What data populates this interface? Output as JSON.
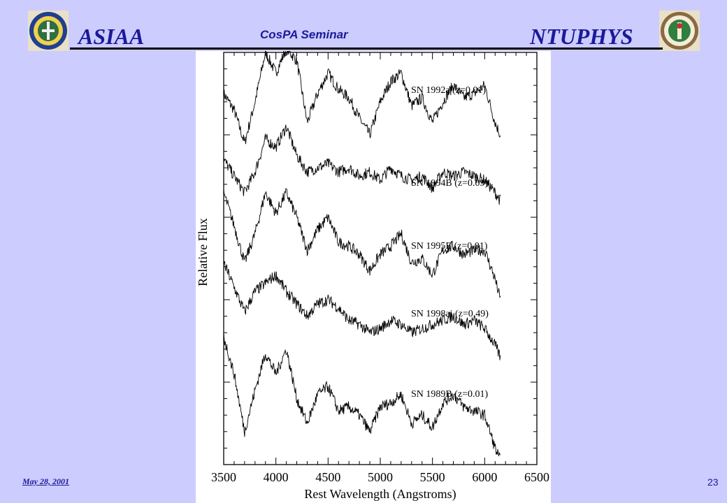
{
  "header": {
    "left_brand": "ASIAA",
    "center_title": "CosPA Seminar",
    "right_brand": "NTUPHYS",
    "left_logo": "academia-sinica-seal-icon",
    "right_logo": "ntu-seal-icon"
  },
  "footer": {
    "date": "May 28, 2001",
    "page_number": "23"
  },
  "colors": {
    "background": "#ccccff",
    "title_text": "#1a1a99",
    "plot_line": "#000000"
  },
  "chart_data": {
    "type": "line",
    "title": "",
    "xlabel": "Rest Wavelength (Angstroms)",
    "ylabel": "Relative Flux",
    "xlim": [
      3500,
      6500
    ],
    "ylim": [
      0,
      5
    ],
    "xticks": [
      3500,
      4000,
      4500,
      5000,
      5500,
      6000,
      6500
    ],
    "x_tick_labels": [
      "3500",
      "4000",
      "4500",
      "5000",
      "5500",
      "6000",
      "6500"
    ],
    "y_tick_labels_shown": false,
    "grid": false,
    "legend": "labels placed above each spectrum on the right",
    "series": [
      {
        "name": "SN 1992a (z=0.01)",
        "x": [
          3500,
          3600,
          3700,
          3800,
          3900,
          4000,
          4100,
          4200,
          4300,
          4400,
          4500,
          4600,
          4700,
          4800,
          4900,
          5000,
          5100,
          5200,
          5300,
          5400,
          5500,
          5600,
          5700,
          5800,
          5900,
          6000,
          6100,
          6150
        ],
        "y": [
          4.5,
          4.3,
          3.9,
          4.4,
          5.0,
          4.75,
          5.05,
          4.9,
          4.15,
          4.5,
          4.75,
          4.55,
          4.45,
          4.2,
          4.0,
          4.4,
          4.65,
          4.75,
          4.35,
          4.45,
          4.15,
          4.4,
          4.6,
          4.45,
          4.5,
          4.6,
          4.15,
          4.0
        ]
      },
      {
        "name": "SN 1994B (z=0.09)",
        "x": [
          3500,
          3600,
          3700,
          3800,
          3900,
          4000,
          4100,
          4200,
          4300,
          4400,
          4500,
          4600,
          4700,
          4800,
          4900,
          5000,
          5100,
          5200,
          5300,
          5400,
          5500,
          5600,
          5700,
          5800,
          5900,
          6000,
          6100,
          6150
        ],
        "y": [
          3.7,
          3.5,
          3.3,
          3.55,
          3.95,
          3.85,
          4.1,
          3.75,
          3.55,
          3.6,
          3.65,
          3.55,
          3.6,
          3.5,
          3.55,
          3.45,
          3.6,
          3.5,
          3.45,
          3.5,
          3.35,
          3.55,
          3.5,
          3.55,
          3.5,
          3.45,
          3.3,
          3.2
        ]
      },
      {
        "name": "SN 1995E (z=0.01)",
        "x": [
          3500,
          3600,
          3700,
          3800,
          3900,
          4000,
          4100,
          4200,
          4300,
          4400,
          4500,
          4600,
          4700,
          4800,
          4900,
          5000,
          5100,
          5200,
          5300,
          5400,
          5500,
          5600,
          5700,
          5800,
          5900,
          6000,
          6100,
          6150
        ],
        "y": [
          3.3,
          2.9,
          2.45,
          2.8,
          3.3,
          3.05,
          3.3,
          3.0,
          2.6,
          2.85,
          3.0,
          2.7,
          2.65,
          2.55,
          2.35,
          2.55,
          2.65,
          2.8,
          2.45,
          2.5,
          2.3,
          2.6,
          2.65,
          2.55,
          2.6,
          2.6,
          2.25,
          2.0
        ]
      },
      {
        "name": "SN 1998ai (z=0.49)",
        "x": [
          3500,
          3600,
          3700,
          3800,
          3900,
          4000,
          4100,
          4200,
          4300,
          4400,
          4500,
          4600,
          4700,
          4800,
          4900,
          5000,
          5100,
          5200,
          5300,
          5400,
          5500,
          5600,
          5700,
          5800,
          5900,
          6000,
          6100,
          6150
        ],
        "y": [
          2.45,
          2.15,
          1.85,
          2.1,
          2.2,
          2.3,
          2.1,
          1.95,
          1.8,
          1.95,
          2.0,
          1.9,
          1.75,
          1.7,
          1.6,
          1.65,
          1.75,
          1.7,
          1.6,
          1.65,
          1.7,
          1.75,
          1.8,
          1.7,
          1.75,
          1.65,
          1.45,
          1.3
        ]
      },
      {
        "name": "SN 1989B (z=0.01)",
        "x": [
          3500,
          3600,
          3700,
          3800,
          3900,
          4000,
          4100,
          4200,
          4300,
          4400,
          4500,
          4600,
          4700,
          4800,
          4900,
          5000,
          5100,
          5200,
          5300,
          5400,
          5500,
          5600,
          5700,
          5800,
          5900,
          6000,
          6100,
          6150
        ],
        "y": [
          1.55,
          1.1,
          0.4,
          0.9,
          1.35,
          1.1,
          1.4,
          0.8,
          0.5,
          0.85,
          0.95,
          0.65,
          0.7,
          0.6,
          0.4,
          0.7,
          0.75,
          0.85,
          0.5,
          0.6,
          0.45,
          0.75,
          0.85,
          0.7,
          0.65,
          0.6,
          0.2,
          0.05
        ]
      }
    ]
  }
}
